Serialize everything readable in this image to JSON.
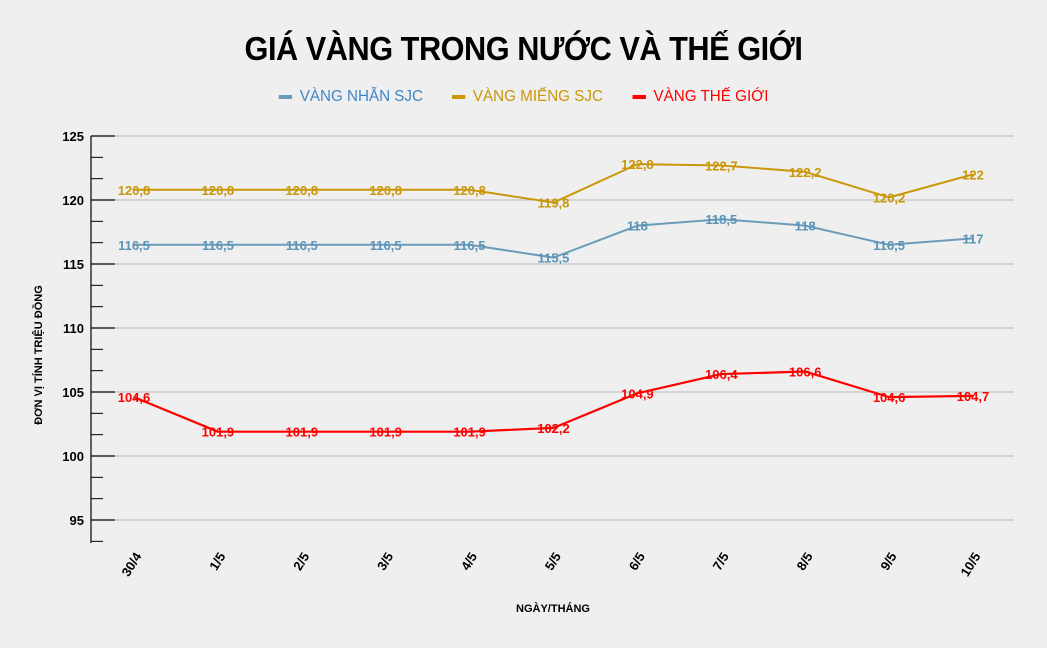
{
  "title": "GIÁ VÀNG TRONG NƯỚC VÀ THẾ GIỚI",
  "legend": [
    {
      "label": "VÀNG NHẪN SJC",
      "swatch": "#6a9cba",
      "text_color": "#3f86c6"
    },
    {
      "label": "VÀNG MIẾNG SJC",
      "swatch": "#c99708",
      "text_color": "#c99708"
    },
    {
      "label": "VÀNG THẾ GIỚI",
      "swatch": "#ff0000",
      "text_color": "#ff0000"
    }
  ],
  "axes": {
    "ylabel": "ĐƠN VỊ TÍNH TRIỆU ĐỒNG",
    "xlabel": "NGÀY/THÁNG"
  },
  "chart_data": {
    "type": "line",
    "title": "GIÁ VÀNG TRONG NƯỚC VÀ THẾ GIỚI",
    "xlabel": "NGÀY/THÁNG",
    "ylabel": "ĐƠN VỊ TÍNH TRIỆU ĐỒNG",
    "categories": [
      "30/4",
      "1/5",
      "2/5",
      "3/5",
      "4/5",
      "5/5",
      "6/5",
      "7/5",
      "8/5",
      "9/5",
      "10/5"
    ],
    "yticks": [
      95,
      100,
      105,
      110,
      115,
      120,
      125
    ],
    "ylim": [
      93.2,
      125
    ],
    "grid": true,
    "legend_position": "top",
    "series": [
      {
        "name": "VÀNG NHẪN SJC",
        "color": "#6a9cba",
        "label_color": "#5b93b5",
        "values": [
          116.5,
          116.5,
          116.5,
          116.5,
          116.5,
          115.5,
          118,
          118.5,
          118,
          116.5,
          117
        ],
        "labels": [
          "116,5",
          "116,5",
          "116,5",
          "116,5",
          "116,5",
          "115,5",
          "118",
          "118,5",
          "118",
          "116,5",
          "117"
        ]
      },
      {
        "name": "VÀNG MIẾNG SJC",
        "color": "#c99708",
        "label_color": "#c99708",
        "values": [
          120.8,
          120.8,
          120.8,
          120.8,
          120.8,
          119.8,
          122.8,
          122.7,
          122.2,
          120.2,
          122
        ],
        "labels": [
          "120,8",
          "120,8",
          "120,8",
          "120,8",
          "120,8",
          "119,8",
          "122,8",
          "122,7",
          "122,2",
          "120,2",
          "122"
        ]
      },
      {
        "name": "VÀNG THẾ GIỚI",
        "color": "#ff0000",
        "label_color": "#ff0000",
        "values": [
          104.6,
          101.9,
          101.9,
          101.9,
          101.9,
          102.2,
          104.9,
          106.4,
          106.6,
          104.6,
          104.7
        ],
        "labels": [
          "104,6",
          "101,9",
          "101,9",
          "101,9",
          "101,9",
          "102,2",
          "104,9",
          "106,4",
          "106,6",
          "104,6",
          "104,7"
        ]
      }
    ]
  }
}
